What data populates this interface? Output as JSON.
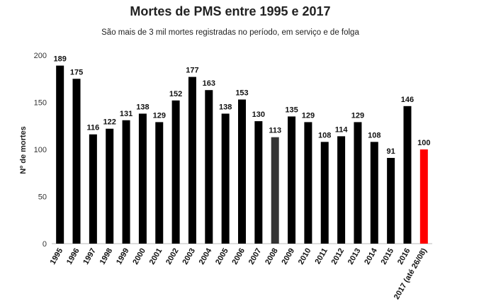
{
  "chart_data": {
    "type": "bar",
    "title": "Mortes de PMS entre 1995 e 2017",
    "subtitle": "São mais de 3 mil mortes registradas no período, em serviço e de folga",
    "xlabel": "",
    "ylabel": "Nº de mortes",
    "ylim": [
      0,
      200
    ],
    "yticks": [
      0,
      50,
      100,
      150,
      200
    ],
    "categories": [
      "1995",
      "1996",
      "1997",
      "1998",
      "1999",
      "2000",
      "2001",
      "2002",
      "2003",
      "2004",
      "2005",
      "2006",
      "2007",
      "2008",
      "2009",
      "2010",
      "2011",
      "2012",
      "2013",
      "2014",
      "2015",
      "2016",
      "2017 (até 26/08)"
    ],
    "values": [
      189,
      175,
      116,
      122,
      131,
      138,
      129,
      152,
      177,
      163,
      138,
      153,
      130,
      113,
      135,
      129,
      108,
      114,
      129,
      108,
      91,
      146,
      100
    ],
    "bar_colors": [
      "#000000",
      "#000000",
      "#000000",
      "#000000",
      "#000000",
      "#000000",
      "#000000",
      "#000000",
      "#000000",
      "#000000",
      "#000000",
      "#000000",
      "#000000",
      "#333333",
      "#000000",
      "#000000",
      "#000000",
      "#000000",
      "#000000",
      "#000000",
      "#000000",
      "#000000",
      "#ff0000"
    ],
    "grid": false,
    "legend": "none"
  }
}
